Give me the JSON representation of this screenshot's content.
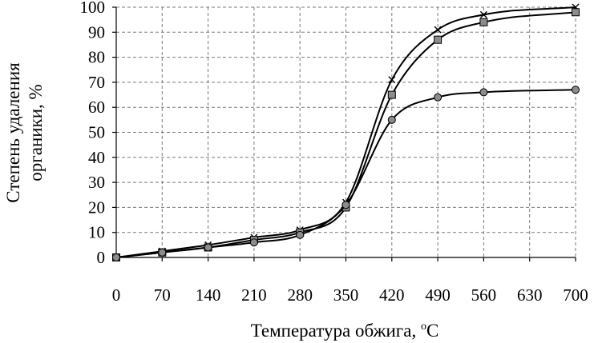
{
  "chart_data": {
    "type": "line",
    "xlabel_main": "Температура обжига, ",
    "xlabel_sup": "о",
    "xlabel_unit": "С",
    "ylabel_line1": "Степень удаления",
    "ylabel_line2": "органики, %",
    "xlim": [
      0,
      700
    ],
    "ylim": [
      0,
      100
    ],
    "xticks": [
      0,
      70,
      140,
      210,
      280,
      350,
      420,
      490,
      560,
      630,
      700
    ],
    "yticks": [
      0,
      10,
      20,
      30,
      40,
      50,
      60,
      70,
      80,
      90,
      100
    ],
    "grid": true,
    "series": [
      {
        "marker": "cross",
        "points": [
          [
            0,
            0
          ],
          [
            70,
            2.5
          ],
          [
            140,
            5
          ],
          [
            210,
            8
          ],
          [
            280,
            11
          ],
          [
            350,
            22
          ],
          [
            420,
            71
          ],
          [
            490,
            91
          ],
          [
            560,
            97
          ],
          [
            700,
            100
          ]
        ]
      },
      {
        "marker": "square",
        "points": [
          [
            0,
            0
          ],
          [
            70,
            2
          ],
          [
            140,
            4
          ],
          [
            210,
            7
          ],
          [
            280,
            10
          ],
          [
            350,
            20
          ],
          [
            420,
            65
          ],
          [
            490,
            87
          ],
          [
            560,
            94
          ],
          [
            700,
            98
          ]
        ]
      },
      {
        "marker": "circle",
        "points": [
          [
            0,
            0
          ],
          [
            70,
            2
          ],
          [
            140,
            4
          ],
          [
            210,
            6
          ],
          [
            280,
            9
          ],
          [
            350,
            21
          ],
          [
            420,
            55
          ],
          [
            490,
            64
          ],
          [
            560,
            66
          ],
          [
            700,
            67
          ]
        ]
      }
    ]
  }
}
